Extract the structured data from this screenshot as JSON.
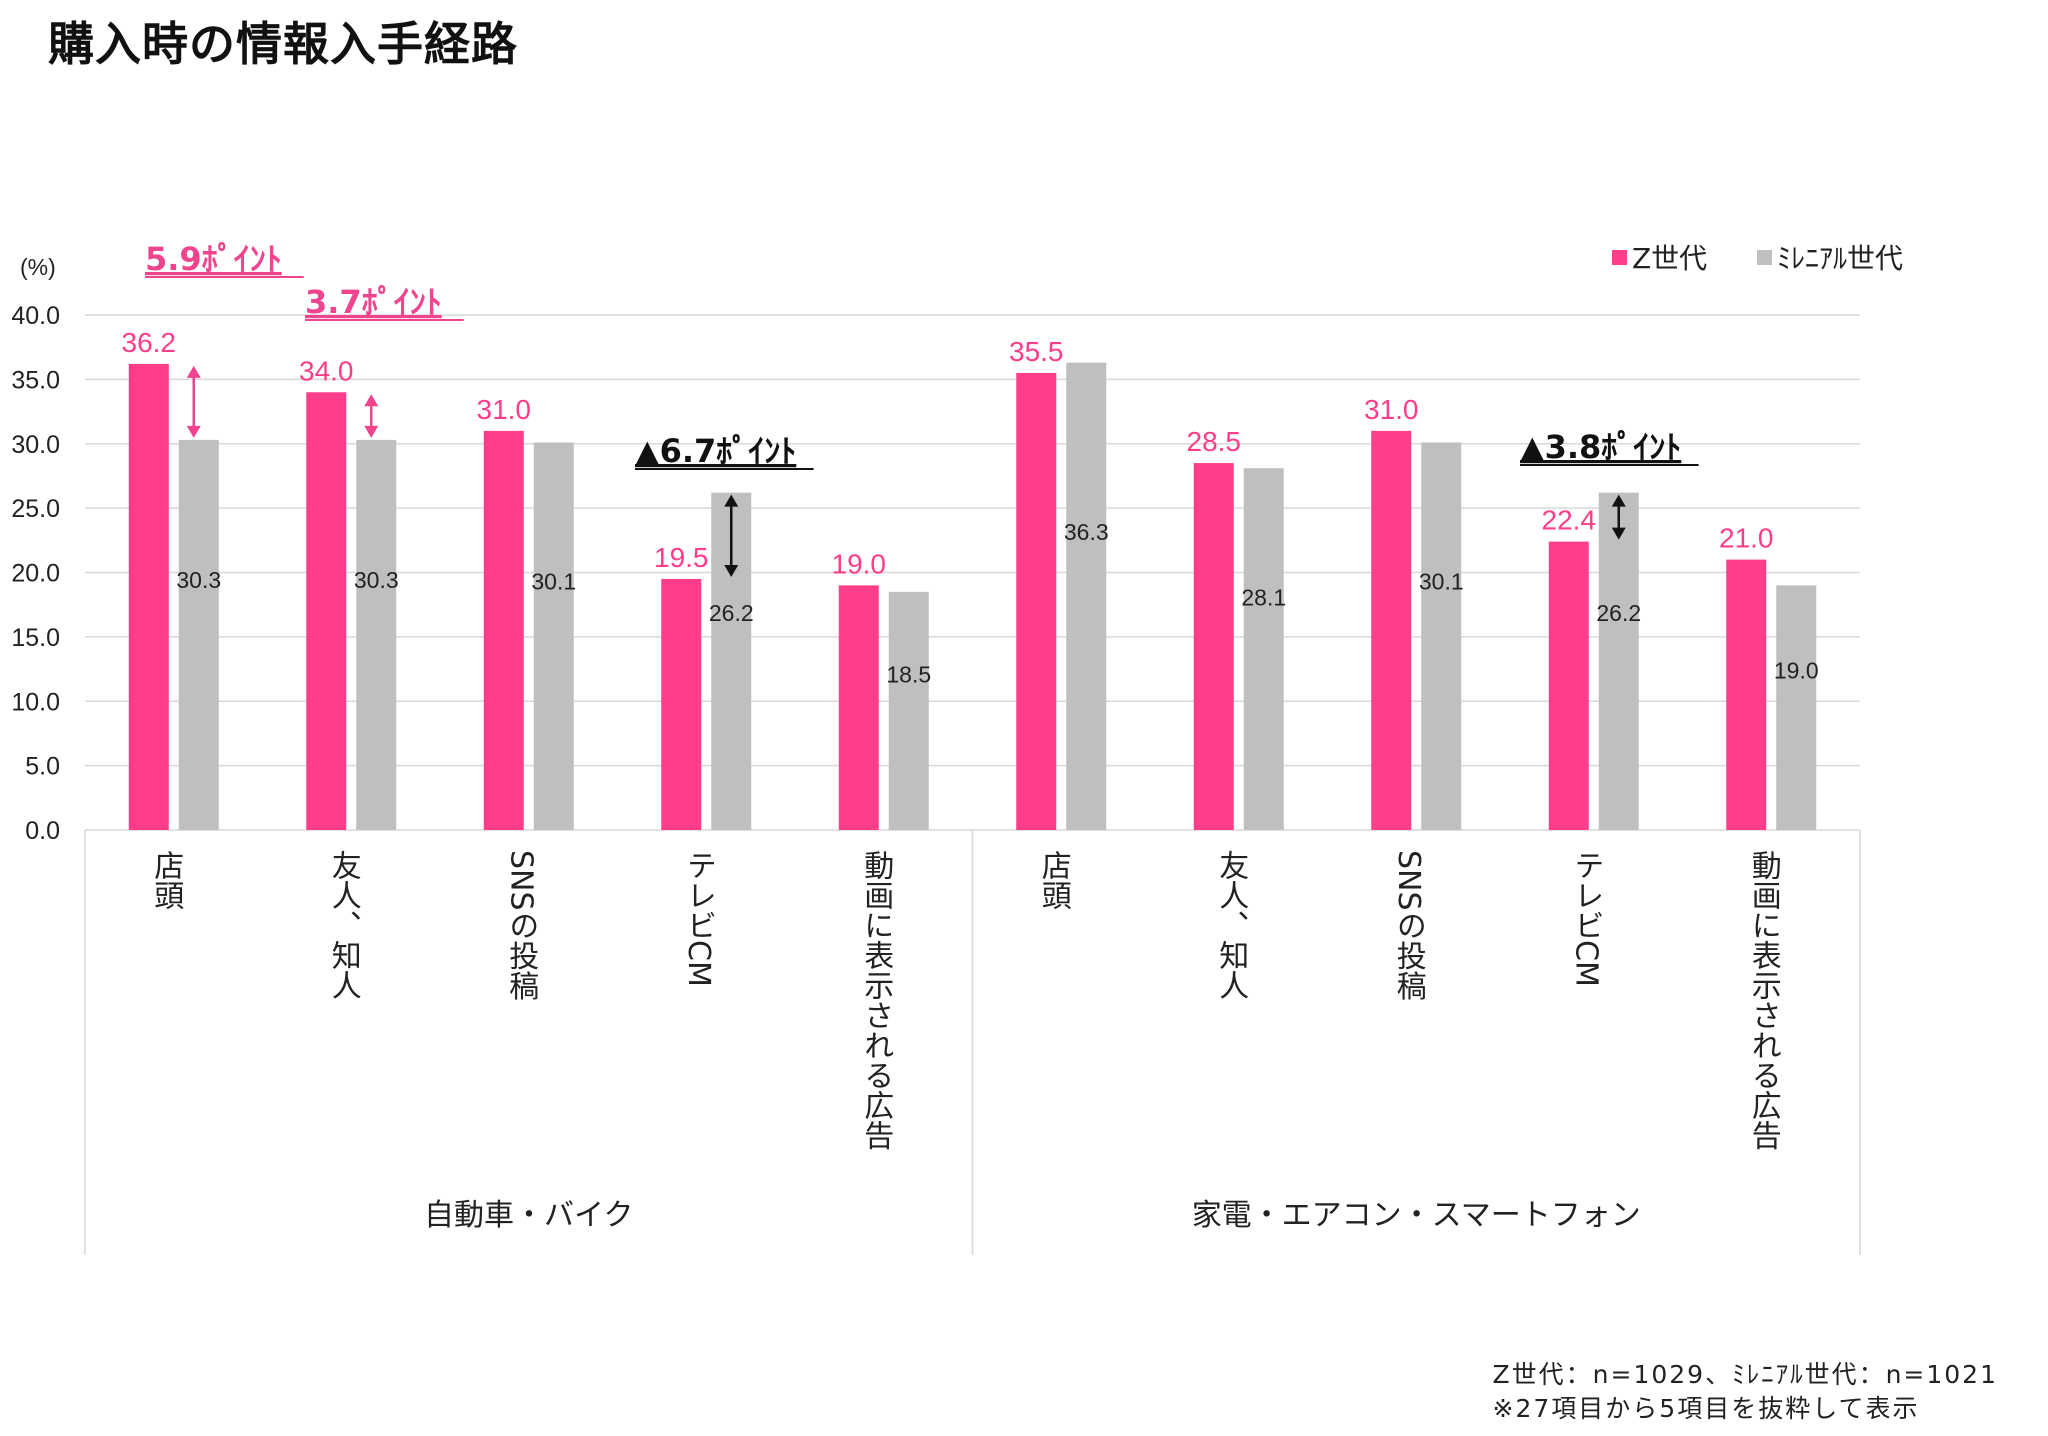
{
  "page_title": "購入時の情報入手経路",
  "footnotes": {
    "sample": "Z世代：n=1029、ﾐﾚﾆｱﾙ世代：n=1021",
    "note": "※27項目から5項目を抜粋して表示"
  },
  "colors": {
    "z_gen": "#FF3D8B",
    "millennial": "#BFBFBF",
    "annotation_pink": "#F0448F",
    "annotation_dark": "#111111",
    "grid": "#D9D9D9",
    "axis_text": "#222222"
  },
  "chart_data": {
    "type": "bar",
    "title": "",
    "ylabel": "(%)",
    "ylim": [
      0,
      40
    ],
    "yticks": [
      "0.0",
      "5.0",
      "10.0",
      "15.0",
      "20.0",
      "25.0",
      "30.0",
      "35.0",
      "40.0"
    ],
    "grid": true,
    "legend_position": "top-right",
    "groups": [
      {
        "name": "自動車・バイク",
        "categories": [
          "店頭",
          "友人、知人",
          "SNSの投稿",
          "テレビCM",
          "動画に表示される広告"
        ]
      },
      {
        "name": "家電・エアコン・スマートフォン",
        "categories": [
          "店頭",
          "友人、知人",
          "SNSの投稿",
          "テレビCM",
          "動画に表示される広告"
        ]
      }
    ],
    "series": [
      {
        "name": "Z世代",
        "values": [
          36.2,
          34.0,
          31.0,
          19.5,
          19.0,
          35.5,
          28.5,
          31.0,
          22.4,
          21.0
        ]
      },
      {
        "name": "ﾐﾚﾆｱﾙ世代",
        "values": [
          30.3,
          30.3,
          30.1,
          26.2,
          18.5,
          36.3,
          28.1,
          30.1,
          26.2,
          19.0
        ]
      }
    ],
    "annotations": [
      {
        "text": "5.9ﾎﾟｲﾝﾄ",
        "category_index": 0,
        "style": "pink"
      },
      {
        "text": "3.7ﾎﾟｲﾝﾄ",
        "category_index": 1,
        "style": "pink"
      },
      {
        "text": "▲6.7ﾎﾟｲﾝﾄ",
        "category_index": 3,
        "style": "dark"
      },
      {
        "text": "▲3.8ﾎﾟｲﾝﾄ",
        "category_index": 8,
        "style": "dark"
      }
    ]
  }
}
